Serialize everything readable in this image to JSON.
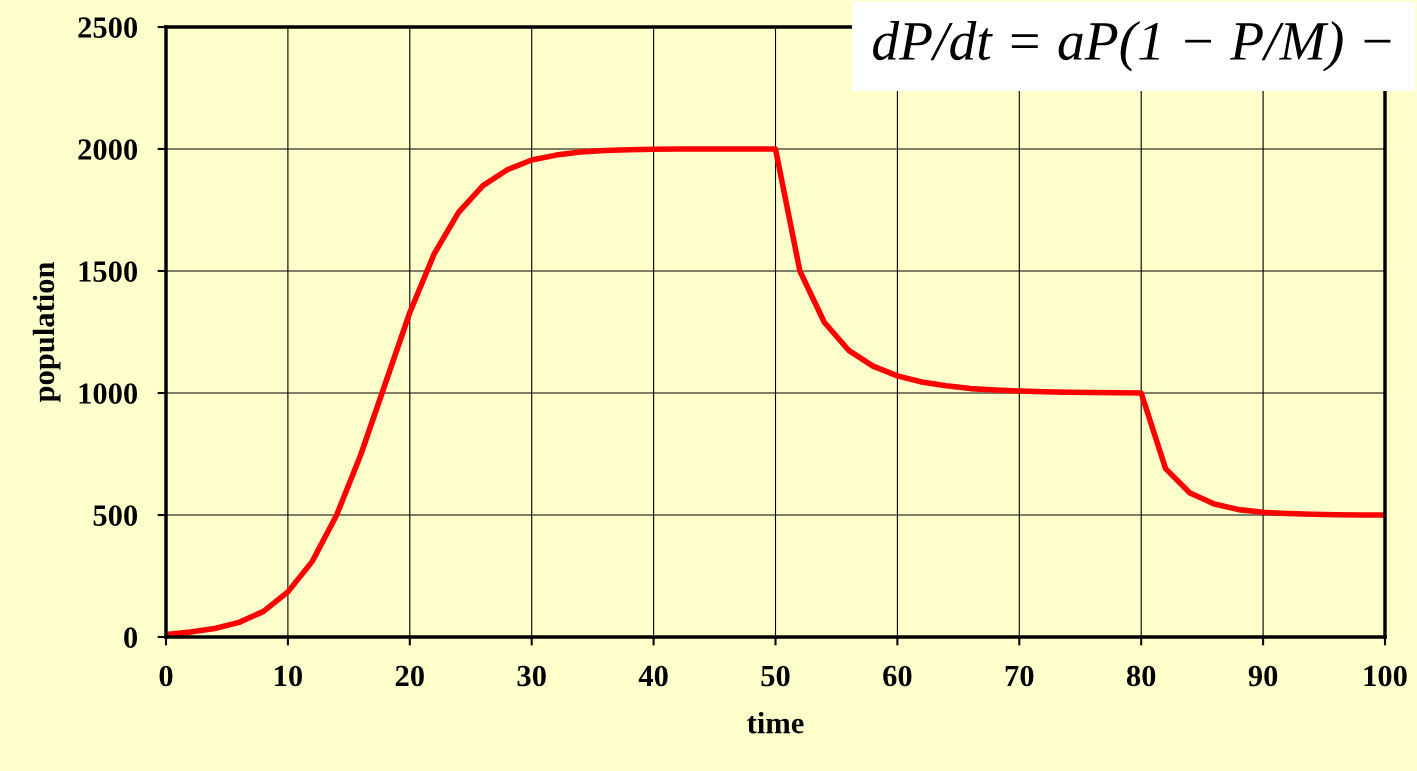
{
  "chart_data": {
    "type": "line",
    "xlabel": "time",
    "ylabel": "population",
    "x": [
      0,
      2,
      4,
      6,
      8,
      10,
      12,
      14,
      16,
      18,
      20,
      22,
      24,
      26,
      28,
      30,
      32,
      34,
      36,
      38,
      40,
      42,
      44,
      46,
      48,
      50,
      52,
      54,
      56,
      58,
      60,
      62,
      64,
      66,
      68,
      70,
      72,
      74,
      76,
      78,
      80,
      82,
      84,
      86,
      88,
      90,
      92,
      94,
      96,
      98,
      100
    ],
    "series": [
      {
        "color": "#ff0000",
        "values": [
          10,
          20,
          35,
          60,
          105,
          185,
          310,
          500,
          750,
          1040,
          1330,
          1570,
          1740,
          1850,
          1915,
          1955,
          1975,
          1988,
          1994,
          1997,
          1999,
          2000,
          2000,
          2000,
          2000,
          2000,
          1500,
          1290,
          1175,
          1110,
          1070,
          1045,
          1030,
          1018,
          1012,
          1008,
          1005,
          1003,
          1002,
          1001,
          1000,
          690,
          590,
          545,
          522,
          511,
          506,
          503,
          501,
          500,
          500
        ]
      }
    ],
    "xlim": [
      0,
      100
    ],
    "ylim": [
      0,
      2500
    ],
    "xticks": [
      0,
      10,
      20,
      30,
      40,
      50,
      60,
      70,
      80,
      90,
      100
    ],
    "yticks": [
      0,
      500,
      1000,
      1500,
      2000,
      2500
    ],
    "grid": true,
    "legend": false,
    "marker": "none",
    "line_style": "solid",
    "annotations": [
      "dP/dt = aP(1 − P/M) −"
    ]
  }
}
